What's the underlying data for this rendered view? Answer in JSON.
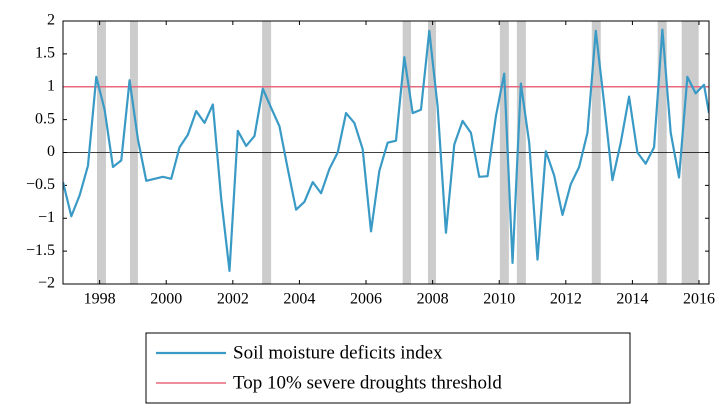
{
  "chart_data": {
    "type": "line",
    "x": [
      1996.9,
      1997.15,
      1997.4,
      1997.65,
      1997.9,
      1998.15,
      1998.4,
      1998.65,
      1998.9,
      1999.15,
      1999.4,
      1999.65,
      1999.9,
      2000.15,
      2000.4,
      2000.65,
      2000.9,
      2001.15,
      2001.4,
      2001.65,
      2001.9,
      2002.15,
      2002.4,
      2002.65,
      2002.9,
      2003.15,
      2003.4,
      2003.65,
      2003.9,
      2004.15,
      2004.4,
      2004.65,
      2004.9,
      2005.15,
      2005.4,
      2005.65,
      2005.9,
      2006.15,
      2006.4,
      2006.65,
      2006.9,
      2007.15,
      2007.4,
      2007.65,
      2007.9,
      2008.15,
      2008.4,
      2008.65,
      2008.9,
      2009.15,
      2009.4,
      2009.65,
      2009.9,
      2010.15,
      2010.4,
      2010.65,
      2010.9,
      2011.15,
      2011.4,
      2011.65,
      2011.9,
      2012.15,
      2012.4,
      2012.65,
      2012.9,
      2013.15,
      2013.4,
      2013.65,
      2013.9,
      2014.15,
      2014.4,
      2014.65,
      2014.9,
      2015.15,
      2015.4,
      2015.65,
      2015.9,
      2016.15,
      2016.3
    ],
    "series": [
      {
        "name": "Soil moisture deficits index",
        "color": "#3a9ac6",
        "values": [
          -0.45,
          -0.97,
          -0.65,
          -0.2,
          1.15,
          0.65,
          -0.22,
          -0.12,
          1.1,
          0.2,
          -0.43,
          -0.4,
          -0.37,
          -0.4,
          0.08,
          0.27,
          0.63,
          0.45,
          0.73,
          -0.7,
          -1.8,
          0.33,
          0.1,
          0.25,
          0.97,
          0.68,
          0.4,
          -0.25,
          -0.87,
          -0.75,
          -0.45,
          -0.62,
          -0.25,
          0,
          0.6,
          0.45,
          0.05,
          -1.2,
          -0.28,
          0.15,
          0.18,
          1.45,
          0.6,
          0.65,
          1.85,
          0.7,
          -1.22,
          0.12,
          0.48,
          0.3,
          -0.37,
          -0.36,
          0.55,
          1.2,
          -1.68,
          1.05,
          0.15,
          -1.63,
          0.02,
          -0.35,
          -0.95,
          -0.48,
          -0.22,
          0.3,
          1.85,
          0.75,
          -0.42,
          0.15,
          0.85,
          0,
          -0.17,
          0.08,
          1.87,
          0.3,
          -0.38,
          1.15,
          0.9,
          1.03,
          0.6
        ]
      }
    ],
    "threshold": {
      "name": "Top 10% severe droughts threshold",
      "value": 1,
      "color": "#e8697b"
    },
    "shaded_periods": [
      [
        1997.92,
        1998.19
      ],
      [
        1998.91,
        1999.15
      ],
      [
        2002.88,
        2003.15
      ],
      [
        2007.1,
        2007.35
      ],
      [
        2007.86,
        2008.1
      ],
      [
        2010.02,
        2010.29
      ],
      [
        2010.53,
        2010.8
      ],
      [
        2012.78,
        2013.05
      ],
      [
        2014.76,
        2015.03
      ],
      [
        2015.48,
        2015.99
      ]
    ],
    "shade_color": "#cccccc",
    "xlim": [
      1996.9,
      2016.3
    ],
    "xticks": [
      1998,
      2000,
      2002,
      2004,
      2006,
      2008,
      2010,
      2012,
      2014,
      2016
    ],
    "ylim": [
      -2,
      2
    ],
    "yticks": [
      {
        "value": -2,
        "label": "−2"
      },
      {
        "value": -1.5,
        "label": "−1.5"
      },
      {
        "value": -1,
        "label": "−1"
      },
      {
        "value": -0.5,
        "label": "−0.5"
      },
      0,
      0.5,
      1,
      1.5,
      2
    ],
    "legend": "bottom"
  }
}
